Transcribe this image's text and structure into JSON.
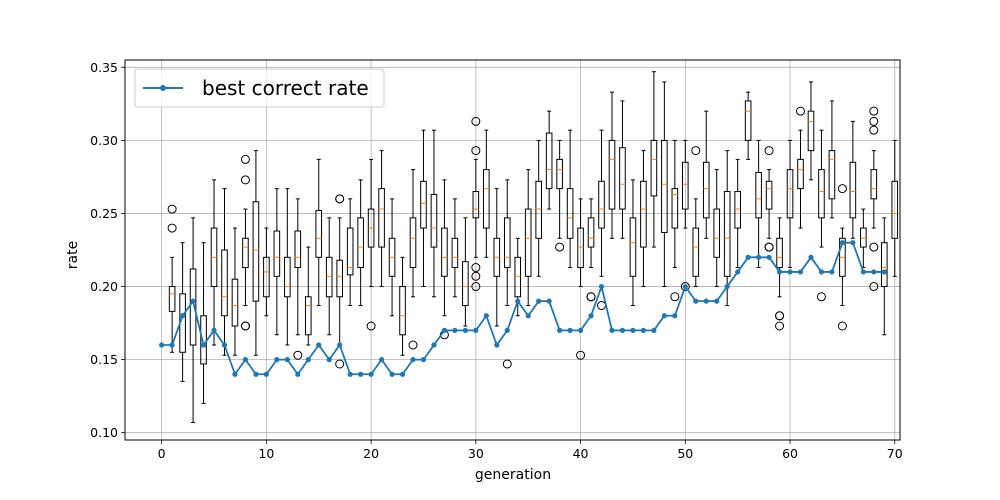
{
  "chart_data": {
    "type": "line",
    "xlabel": "generation",
    "ylabel": "rate",
    "xlim": [
      -3.5,
      70.5
    ],
    "ylim": [
      0.095,
      0.355
    ],
    "x_ticks": [
      0,
      10,
      20,
      30,
      40,
      50,
      60,
      70
    ],
    "x_tick_labels": [
      "0",
      "10",
      "20",
      "30",
      "40",
      "50",
      "60",
      "70"
    ],
    "y_ticks": [
      0.1,
      0.15,
      0.2,
      0.25,
      0.3,
      0.35
    ],
    "y_tick_labels": [
      "0.10",
      "0.15",
      "0.20",
      "0.25",
      "0.30",
      "0.35"
    ],
    "grid": true,
    "legend_position": "top-left",
    "line_color": "#1f77b4",
    "median_color": "#ff7f0e",
    "series": [
      {
        "name": "best correct rate",
        "x": [
          0,
          1,
          2,
          3,
          4,
          5,
          6,
          7,
          8,
          9,
          10,
          11,
          12,
          13,
          14,
          15,
          16,
          17,
          18,
          19,
          20,
          21,
          22,
          23,
          24,
          25,
          26,
          27,
          28,
          29,
          30,
          31,
          32,
          33,
          34,
          35,
          36,
          37,
          38,
          39,
          40,
          41,
          42,
          43,
          44,
          45,
          46,
          47,
          48,
          49,
          50,
          51,
          52,
          53,
          54,
          55,
          56,
          57,
          58,
          59,
          60,
          61,
          62,
          63,
          64,
          65,
          66,
          67,
          68,
          69
        ],
        "values": [
          0.16,
          0.16,
          0.18,
          0.19,
          0.16,
          0.17,
          0.16,
          0.14,
          0.15,
          0.14,
          0.14,
          0.15,
          0.15,
          0.14,
          0.15,
          0.16,
          0.15,
          0.16,
          0.14,
          0.14,
          0.14,
          0.15,
          0.14,
          0.14,
          0.15,
          0.15,
          0.16,
          0.17,
          0.17,
          0.17,
          0.17,
          0.18,
          0.16,
          0.17,
          0.19,
          0.18,
          0.19,
          0.19,
          0.17,
          0.17,
          0.17,
          0.18,
          0.2,
          0.17,
          0.17,
          0.17,
          0.17,
          0.17,
          0.18,
          0.18,
          0.2,
          0.19,
          0.19,
          0.19,
          0.2,
          0.21,
          0.22,
          0.22,
          0.22,
          0.21,
          0.21,
          0.21,
          0.22,
          0.21,
          0.21,
          0.23,
          0.23,
          0.21,
          0.21,
          0.21
        ]
      }
    ],
    "boxplots": [
      {
        "x": 1,
        "whislo": 0.155,
        "q1": 0.183,
        "med": 0.195,
        "q3": 0.2,
        "whishi": 0.22,
        "fliers": [
          0.24,
          0.253
        ]
      },
      {
        "x": 2,
        "whislo": 0.135,
        "q1": 0.155,
        "med": 0.18,
        "q3": 0.195,
        "whishi": 0.23,
        "fliers": []
      },
      {
        "x": 3,
        "whislo": 0.107,
        "q1": 0.16,
        "med": 0.19,
        "q3": 0.212,
        "whishi": 0.247,
        "fliers": []
      },
      {
        "x": 4,
        "whislo": 0.12,
        "q1": 0.147,
        "med": 0.16,
        "q3": 0.18,
        "whishi": 0.23,
        "fliers": []
      },
      {
        "x": 5,
        "whislo": 0.16,
        "q1": 0.2,
        "med": 0.22,
        "q3": 0.24,
        "whishi": 0.273,
        "fliers": []
      },
      {
        "x": 6,
        "whislo": 0.153,
        "q1": 0.18,
        "med": 0.193,
        "q3": 0.225,
        "whishi": 0.267,
        "fliers": []
      },
      {
        "x": 7,
        "whislo": 0.153,
        "q1": 0.173,
        "med": 0.187,
        "q3": 0.205,
        "whishi": 0.24,
        "fliers": []
      },
      {
        "x": 8,
        "whislo": 0.187,
        "q1": 0.213,
        "med": 0.227,
        "q3": 0.233,
        "whishi": 0.253,
        "fliers": [
          0.173,
          0.173,
          0.273,
          0.287
        ]
      },
      {
        "x": 9,
        "whislo": 0.153,
        "q1": 0.19,
        "med": 0.225,
        "q3": 0.258,
        "whishi": 0.293,
        "fliers": []
      },
      {
        "x": 10,
        "whislo": 0.18,
        "q1": 0.193,
        "med": 0.21,
        "q3": 0.22,
        "whishi": 0.24,
        "fliers": []
      },
      {
        "x": 11,
        "whislo": 0.167,
        "q1": 0.207,
        "med": 0.22,
        "q3": 0.238,
        "whishi": 0.267,
        "fliers": []
      },
      {
        "x": 12,
        "whislo": 0.16,
        "q1": 0.193,
        "med": 0.2,
        "q3": 0.22,
        "whishi": 0.267,
        "fliers": []
      },
      {
        "x": 13,
        "whislo": 0.167,
        "q1": 0.213,
        "med": 0.22,
        "q3": 0.238,
        "whishi": 0.26,
        "fliers": [
          0.153
        ]
      },
      {
        "x": 14,
        "whislo": 0.16,
        "q1": 0.167,
        "med": 0.187,
        "q3": 0.193,
        "whishi": 0.227,
        "fliers": []
      },
      {
        "x": 15,
        "whislo": 0.187,
        "q1": 0.22,
        "med": 0.233,
        "q3": 0.252,
        "whishi": 0.287,
        "fliers": []
      },
      {
        "x": 16,
        "whislo": 0.167,
        "q1": 0.193,
        "med": 0.207,
        "q3": 0.22,
        "whishi": 0.247,
        "fliers": []
      },
      {
        "x": 17,
        "whislo": 0.16,
        "q1": 0.193,
        "med": 0.207,
        "q3": 0.218,
        "whishi": 0.247,
        "fliers": [
          0.147,
          0.26,
          0.26
        ]
      },
      {
        "x": 18,
        "whislo": 0.187,
        "q1": 0.208,
        "med": 0.213,
        "q3": 0.24,
        "whishi": 0.26,
        "fliers": []
      },
      {
        "x": 19,
        "whislo": 0.187,
        "q1": 0.213,
        "med": 0.227,
        "q3": 0.247,
        "whishi": 0.273,
        "fliers": []
      },
      {
        "x": 20,
        "whislo": 0.2,
        "q1": 0.227,
        "med": 0.24,
        "q3": 0.253,
        "whishi": 0.287,
        "fliers": [
          0.173
        ]
      },
      {
        "x": 21,
        "whislo": 0.2,
        "q1": 0.227,
        "med": 0.253,
        "q3": 0.267,
        "whishi": 0.293,
        "fliers": []
      },
      {
        "x": 22,
        "whislo": 0.18,
        "q1": 0.207,
        "med": 0.22,
        "q3": 0.233,
        "whishi": 0.26,
        "fliers": []
      },
      {
        "x": 23,
        "whislo": 0.153,
        "q1": 0.167,
        "med": 0.18,
        "q3": 0.2,
        "whishi": 0.22,
        "fliers": []
      },
      {
        "x": 24,
        "whislo": 0.193,
        "q1": 0.213,
        "med": 0.233,
        "q3": 0.247,
        "whishi": 0.28,
        "fliers": [
          0.16
        ]
      },
      {
        "x": 25,
        "whislo": 0.2,
        "q1": 0.24,
        "med": 0.257,
        "q3": 0.272,
        "whishi": 0.307,
        "fliers": []
      },
      {
        "x": 26,
        "whislo": 0.193,
        "q1": 0.227,
        "med": 0.24,
        "q3": 0.263,
        "whishi": 0.307,
        "fliers": []
      },
      {
        "x": 27,
        "whislo": 0.18,
        "q1": 0.207,
        "med": 0.22,
        "q3": 0.24,
        "whishi": 0.273,
        "fliers": [
          0.167
        ]
      },
      {
        "x": 28,
        "whislo": 0.193,
        "q1": 0.213,
        "med": 0.22,
        "q3": 0.233,
        "whishi": 0.26,
        "fliers": []
      },
      {
        "x": 29,
        "whislo": 0.173,
        "q1": 0.187,
        "med": 0.2,
        "q3": 0.217,
        "whishi": 0.247,
        "fliers": []
      },
      {
        "x": 30,
        "whislo": 0.22,
        "q1": 0.247,
        "med": 0.253,
        "q3": 0.265,
        "whishi": 0.287,
        "fliers": [
          0.2,
          0.207,
          0.213,
          0.293,
          0.313
        ]
      },
      {
        "x": 31,
        "whislo": 0.22,
        "q1": 0.24,
        "med": 0.267,
        "q3": 0.28,
        "whishi": 0.307,
        "fliers": []
      },
      {
        "x": 32,
        "whislo": 0.173,
        "q1": 0.207,
        "med": 0.22,
        "q3": 0.233,
        "whishi": 0.267,
        "fliers": []
      },
      {
        "x": 33,
        "whislo": 0.187,
        "q1": 0.213,
        "med": 0.22,
        "q3": 0.247,
        "whishi": 0.273,
        "fliers": [
          0.147
        ]
      },
      {
        "x": 34,
        "whislo": 0.18,
        "q1": 0.193,
        "med": 0.207,
        "q3": 0.22,
        "whishi": 0.233,
        "fliers": []
      },
      {
        "x": 35,
        "whislo": 0.187,
        "q1": 0.207,
        "med": 0.233,
        "q3": 0.253,
        "whishi": 0.28,
        "fliers": []
      },
      {
        "x": 36,
        "whislo": 0.207,
        "q1": 0.233,
        "med": 0.253,
        "q3": 0.272,
        "whishi": 0.3,
        "fliers": []
      },
      {
        "x": 37,
        "whislo": 0.253,
        "q1": 0.267,
        "med": 0.28,
        "q3": 0.305,
        "whishi": 0.32,
        "fliers": []
      },
      {
        "x": 38,
        "whislo": 0.233,
        "q1": 0.267,
        "med": 0.28,
        "q3": 0.287,
        "whishi": 0.3,
        "fliers": [
          0.227
        ]
      },
      {
        "x": 39,
        "whislo": 0.213,
        "q1": 0.233,
        "med": 0.247,
        "q3": 0.267,
        "whishi": 0.307,
        "fliers": []
      },
      {
        "x": 40,
        "whislo": 0.2,
        "q1": 0.213,
        "med": 0.227,
        "q3": 0.24,
        "whishi": 0.26,
        "fliers": [
          0.153
        ]
      },
      {
        "x": 41,
        "whislo": 0.213,
        "q1": 0.227,
        "med": 0.233,
        "q3": 0.247,
        "whishi": 0.26,
        "fliers": [
          0.193,
          0.193
        ]
      },
      {
        "x": 42,
        "whislo": 0.207,
        "q1": 0.24,
        "med": 0.253,
        "q3": 0.272,
        "whishi": 0.307,
        "fliers": [
          0.187
        ]
      },
      {
        "x": 43,
        "whislo": 0.233,
        "q1": 0.253,
        "med": 0.287,
        "q3": 0.3,
        "whishi": 0.333,
        "fliers": []
      },
      {
        "x": 44,
        "whislo": 0.233,
        "q1": 0.253,
        "med": 0.27,
        "q3": 0.295,
        "whishi": 0.327,
        "fliers": []
      },
      {
        "x": 45,
        "whislo": 0.187,
        "q1": 0.207,
        "med": 0.23,
        "q3": 0.247,
        "whishi": 0.273,
        "fliers": []
      },
      {
        "x": 46,
        "whislo": 0.2,
        "q1": 0.227,
        "med": 0.253,
        "q3": 0.272,
        "whishi": 0.293,
        "fliers": []
      },
      {
        "x": 47,
        "whislo": 0.227,
        "q1": 0.262,
        "med": 0.287,
        "q3": 0.3,
        "whishi": 0.347,
        "fliers": []
      },
      {
        "x": 48,
        "whislo": 0.2,
        "q1": 0.237,
        "med": 0.27,
        "q3": 0.3,
        "whishi": 0.34,
        "fliers": []
      },
      {
        "x": 49,
        "whislo": 0.213,
        "q1": 0.24,
        "med": 0.263,
        "q3": 0.267,
        "whishi": 0.3,
        "fliers": [
          0.193
        ]
      },
      {
        "x": 50,
        "whislo": 0.24,
        "q1": 0.253,
        "med": 0.27,
        "q3": 0.285,
        "whishi": 0.3,
        "fliers": [
          0.2
        ]
      },
      {
        "x": 51,
        "whislo": 0.2,
        "q1": 0.207,
        "med": 0.227,
        "q3": 0.24,
        "whishi": 0.26,
        "fliers": [
          0.293
        ]
      },
      {
        "x": 52,
        "whislo": 0.233,
        "q1": 0.247,
        "med": 0.267,
        "q3": 0.285,
        "whishi": 0.32,
        "fliers": []
      },
      {
        "x": 53,
        "whislo": 0.2,
        "q1": 0.22,
        "med": 0.233,
        "q3": 0.253,
        "whishi": 0.28,
        "fliers": []
      },
      {
        "x": 54,
        "whislo": 0.187,
        "q1": 0.207,
        "med": 0.233,
        "q3": 0.265,
        "whishi": 0.293,
        "fliers": []
      },
      {
        "x": 55,
        "whislo": 0.213,
        "q1": 0.24,
        "med": 0.253,
        "q3": 0.265,
        "whishi": 0.287,
        "fliers": []
      },
      {
        "x": 56,
        "whislo": 0.287,
        "q1": 0.3,
        "med": 0.32,
        "q3": 0.327,
        "whishi": 0.333,
        "fliers": []
      },
      {
        "x": 57,
        "whislo": 0.213,
        "q1": 0.247,
        "med": 0.26,
        "q3": 0.278,
        "whishi": 0.3,
        "fliers": []
      },
      {
        "x": 58,
        "whislo": 0.233,
        "q1": 0.253,
        "med": 0.267,
        "q3": 0.272,
        "whishi": 0.28,
        "fliers": [
          0.227,
          0.227,
          0.293
        ]
      },
      {
        "x": 59,
        "whislo": 0.193,
        "q1": 0.213,
        "med": 0.22,
        "q3": 0.233,
        "whishi": 0.247,
        "fliers": [
          0.173,
          0.18,
          0.18
        ]
      },
      {
        "x": 60,
        "whislo": 0.213,
        "q1": 0.247,
        "med": 0.267,
        "q3": 0.28,
        "whishi": 0.3,
        "fliers": []
      },
      {
        "x": 61,
        "whislo": 0.24,
        "q1": 0.267,
        "med": 0.28,
        "q3": 0.287,
        "whishi": 0.307,
        "fliers": [
          0.32
        ]
      },
      {
        "x": 62,
        "whislo": 0.273,
        "q1": 0.293,
        "med": 0.313,
        "q3": 0.32,
        "whishi": 0.34,
        "fliers": []
      },
      {
        "x": 63,
        "whislo": 0.227,
        "q1": 0.247,
        "med": 0.265,
        "q3": 0.28,
        "whishi": 0.307,
        "fliers": [
          0.193
        ]
      },
      {
        "x": 64,
        "whislo": 0.247,
        "q1": 0.26,
        "med": 0.287,
        "q3": 0.293,
        "whishi": 0.327,
        "fliers": []
      },
      {
        "x": 65,
        "whislo": 0.187,
        "q1": 0.207,
        "med": 0.22,
        "q3": 0.233,
        "whishi": 0.24,
        "fliers": [
          0.173,
          0.267
        ]
      },
      {
        "x": 66,
        "whislo": 0.233,
        "q1": 0.247,
        "med": 0.265,
        "q3": 0.285,
        "whishi": 0.313,
        "fliers": []
      },
      {
        "x": 67,
        "whislo": 0.213,
        "q1": 0.227,
        "med": 0.233,
        "q3": 0.24,
        "whishi": 0.253,
        "fliers": []
      },
      {
        "x": 68,
        "whislo": 0.24,
        "q1": 0.26,
        "med": 0.267,
        "q3": 0.28,
        "whishi": 0.293,
        "fliers": [
          0.2,
          0.227,
          0.307,
          0.313,
          0.32
        ]
      },
      {
        "x": 69,
        "whislo": 0.167,
        "q1": 0.2,
        "med": 0.213,
        "q3": 0.23,
        "whishi": 0.247,
        "fliers": []
      },
      {
        "x": 70,
        "whislo": 0.207,
        "q1": 0.233,
        "med": 0.25,
        "q3": 0.272,
        "whishi": 0.3,
        "fliers": []
      }
    ]
  }
}
